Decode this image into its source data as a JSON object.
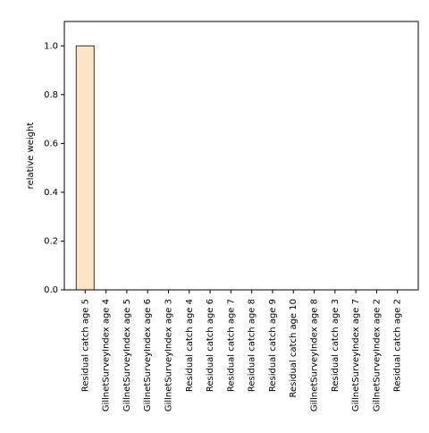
{
  "chart_data": {
    "type": "bar",
    "y_label": "relative weight",
    "categories": [
      "Residual catch age 5",
      "GillnetSurveyIndex age 4",
      "GillnetSurveyIndex age 5",
      "GillnetSurveyIndex age 6",
      "GillnetSurveyIndex age 3",
      "Residual catch age 4",
      "Residual catch age 6",
      "Residual catch age 7",
      "Residual catch age 8",
      "Residual catch age 9",
      "Residual catch age 10",
      "GillnetSurveyIndex age 8",
      "Residual catch age 3",
      "GillnetSurveyIndex age 7",
      "GillnetSurveyIndex age 2",
      "Residual catch age 2"
    ],
    "values": [
      1.0,
      0,
      0,
      0,
      0,
      0,
      0,
      0,
      0,
      0,
      0,
      0,
      0,
      0,
      0,
      0
    ],
    "color": "#fde4c4",
    "ylim": [
      0,
      1.1
    ],
    "yticks": [
      {
        "value": 0,
        "label": "0.0"
      },
      0.2,
      0.4,
      0.6,
      0.8,
      {
        "value": 1,
        "label": "1.0"
      }
    ],
    "grid": false
  }
}
